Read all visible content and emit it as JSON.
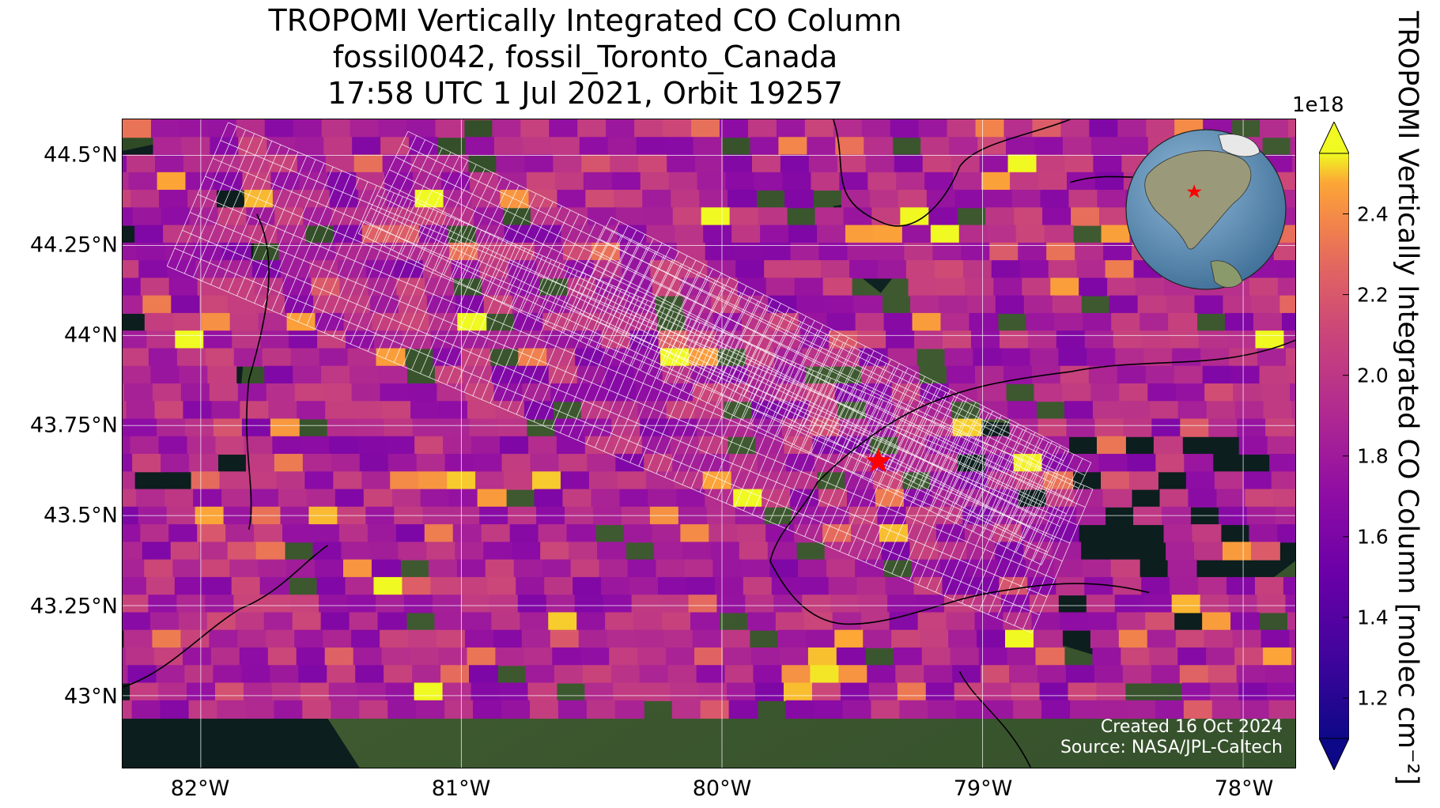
{
  "title": {
    "line1": "TROPOMI Vertically Integrated CO Column",
    "line2": "fossil0042, fossil_Toronto_Canada",
    "line3": "17:58 UTC 1 Jul 2021, Orbit 19257"
  },
  "map": {
    "lon_range": [
      -82.3,
      -77.8
    ],
    "lat_range": [
      42.8,
      44.6
    ],
    "target": {
      "name": "Toronto",
      "lon": -79.4,
      "lat": 43.65,
      "marker": "red-star"
    },
    "background": "satellite-imagery",
    "x_ticks": [
      {
        "lon": -82,
        "label": "82°W"
      },
      {
        "lon": -81,
        "label": "81°W"
      },
      {
        "lon": -80,
        "label": "80°W"
      },
      {
        "lon": -79,
        "label": "79°W"
      },
      {
        "lon": -78,
        "label": "78°W"
      }
    ],
    "y_ticks": [
      {
        "lat": 44.5,
        "label": "44.5°N"
      },
      {
        "lat": 44.25,
        "label": "44.25°N"
      },
      {
        "lat": 44.0,
        "label": "44°N"
      },
      {
        "lat": 43.75,
        "label": "43.75°N"
      },
      {
        "lat": 43.5,
        "label": "43.5°N"
      },
      {
        "lat": 43.25,
        "label": "43.25°N"
      },
      {
        "lat": 43.0,
        "label": "43°N"
      }
    ],
    "gridlines": true
  },
  "colorbar": {
    "colormap": "plasma",
    "range": [
      1.1,
      2.55
    ],
    "exponent_label": "1e18",
    "extend": "both",
    "ticks": [
      {
        "value": 1.2,
        "label": "1.2"
      },
      {
        "value": 1.4,
        "label": "1.4"
      },
      {
        "value": 1.6,
        "label": "1.6"
      },
      {
        "value": 1.8,
        "label": "1.8"
      },
      {
        "value": 2.0,
        "label": "2.0"
      },
      {
        "value": 2.2,
        "label": "2.2"
      },
      {
        "value": 2.4,
        "label": "2.4"
      }
    ],
    "label": "TROPOMI Vertically Integrated CO Column [molec cm⁻²]"
  },
  "inset_globe": {
    "marker": "red-star"
  },
  "credits": {
    "created": "Created 16 Oct 2024",
    "source": "Source: NASA/JPL-Caltech"
  },
  "colors": {
    "target_marker": "#ff0000",
    "gridline": "#ffffff",
    "coastline": "#000000",
    "swath_outline": "#ffffff"
  }
}
